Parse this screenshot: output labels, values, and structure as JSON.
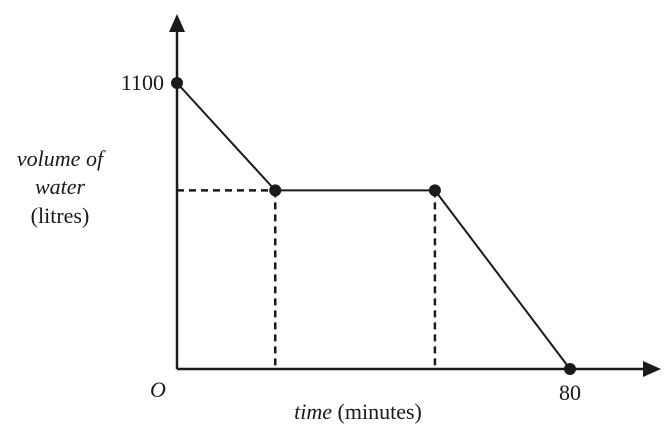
{
  "chart_data": {
    "type": "line",
    "title": "",
    "xlabel_italic": "time",
    "xlabel_rest": "(minutes)",
    "ylabel_line1": "volume of",
    "ylabel_line2": "water",
    "ylabel_line3": "(litres)",
    "origin_label": "O",
    "x_tick_label": "80",
    "y_tick_label": "1100",
    "xlim": [
      0,
      90
    ],
    "ylim": [
      0,
      1350
    ],
    "points": [
      {
        "x": 0,
        "y": 1100
      },
      {
        "x": 20,
        "y": 687
      },
      {
        "x": 52.5,
        "y": 687
      },
      {
        "x": 80,
        "y": 0
      }
    ],
    "dashed_guides": true,
    "grid": false,
    "colors": {
      "line": "#1a1a1a",
      "point": "#1a1a1a",
      "axis": "#1a1a1a"
    }
  }
}
